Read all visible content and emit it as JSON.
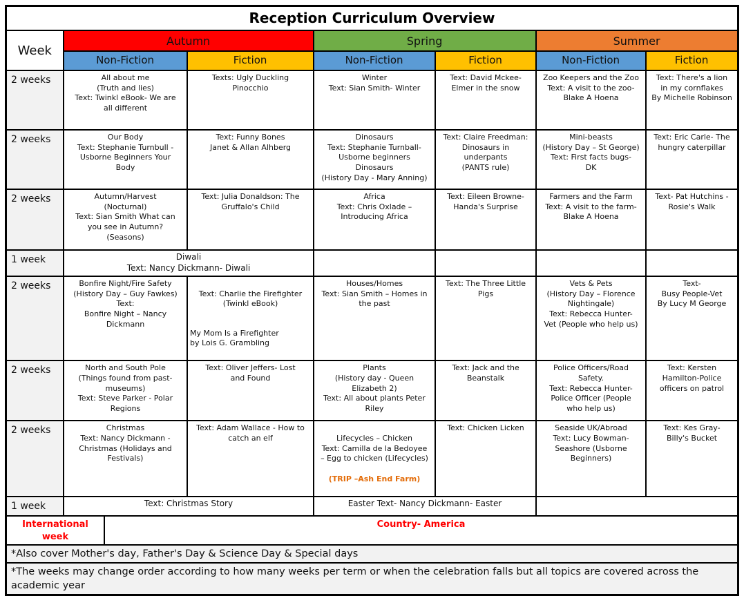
{
  "title": "Reception Curriculum Overview",
  "header": {
    "week_label": "Week",
    "seasons": {
      "autumn": "Autumn",
      "spring": "Spring",
      "summer": "Summer"
    },
    "subheaders": {
      "non_fiction": "Non-Fiction",
      "fiction": "Fiction"
    }
  },
  "colors": {
    "autumn": "#FF0000",
    "spring": "#70AD47",
    "summer": "#ED7D31",
    "non_fiction": "#5B9BD5",
    "fiction": "#FFC000",
    "trip_highlight": "#E36C09",
    "international_text": "#FF0000",
    "week_cell_bg": "#f2f2f2"
  },
  "rows": {
    "r1": {
      "week": "2 weeks",
      "autumn_nf": "All about me\n(Truth and lies)\nText: Twinkl eBook- We are\nall different",
      "autumn_f": "Texts: Ugly Duckling\nPinocchio",
      "spring_nf": "Winter\nText: Sian Smith- Winter",
      "spring_f": "Text: David Mckee-\nElmer in the snow",
      "summer_nf": "Zoo Keepers and the Zoo\nText: A visit to the zoo-\nBlake A Hoena",
      "summer_f": "Text: There's a lion\nin my cornflakes\nBy Michelle Robinson"
    },
    "r2": {
      "week": "2 weeks",
      "autumn_nf": "Our Body\nText: Stephanie Turnbull -\nUsborne Beginners Your\nBody",
      "autumn_f": "Text: Funny Bones\nJanet & Allan Alhberg",
      "spring_nf": "Dinosaurs\nText: Stephanie Turnball-\nUsborne beginners\nDinosaurs\n(History Day - Mary Anning)",
      "spring_f": "Text: Claire Freedman:\nDinosaurs in\nunderpants\n(PANTS rule)",
      "summer_nf": "Mini-beasts\n(History Day – St George)\nText: First facts bugs-\nDK",
      "summer_f": "Text: Eric Carle- The\nhungry caterpillar"
    },
    "r3": {
      "week": "2 weeks",
      "autumn_nf": "Autumn/Harvest\n(Nocturnal)\nText: Sian Smith What can\nyou see in Autumn?\n(Seasons)",
      "autumn_f": "Text: Julia Donaldson: The\nGruffalo's Child",
      "spring_nf": "Africa\nText: Chris Oxlade –\nIntroducing Africa",
      "spring_f": "Text: Eileen Browne-\nHanda's Surprise",
      "summer_nf": "Farmers and the Farm\nText: A visit to the farm-\nBlake A Hoena",
      "summer_f": "Text- Pat Hutchins -\nRosie's Walk"
    },
    "diwali": {
      "week": "1 week",
      "autumn": "Diwali\nText: Nancy Dickmann- Diwali"
    },
    "r5": {
      "week": "2 weeks",
      "autumn_nf": "Bonfire Night/Fire Safety\n(History Day – Guy Fawkes)\nText:\nBonfire Night – Nancy\nDickmann",
      "autumn_f_center": "Text: Charlie the Firefighter\n(Twinkl eBook)",
      "autumn_f_left": "My Mom Is a Firefighter\nby Lois G. Grambling",
      "spring_nf": "Houses/Homes\nText: Sian Smith – Homes in\nthe past",
      "spring_f": "Text: The Three Little\nPigs",
      "summer_nf": "Vets & Pets\n(History Day – Florence\nNightingale)\nText: Rebecca Hunter-\nVet (People who help us)",
      "summer_f": "Text-\nBusy People-Vet\nBy Lucy M George"
    },
    "r6": {
      "week": "2 weeks",
      "autumn_nf": "North and South Pole\n(Things found from past-\nmuseums)\nText: Steve Parker - Polar\nRegions",
      "autumn_f": "Text: Oliver Jeffers- Lost\nand Found",
      "spring_nf": "Plants\n(History day - Queen\nElizabeth 2)\nText: All about plants Peter\nRiley",
      "spring_f": "Text: Jack and the\nBeanstalk",
      "summer_nf": "Police Officers/Road\nSafety.\nText: Rebecca Hunter-\nPolice Officer (People\nwho help us)",
      "summer_f": "Text: Kersten\nHamilton-Police\nofficers on patrol"
    },
    "r7": {
      "week": "2 weeks",
      "autumn_nf": "Christmas\nText: Nancy Dickmann -\nChristmas (Holidays and\nFestivals)",
      "autumn_f": "Text: Adam Wallace - How to\ncatch an elf",
      "spring_nf": "Lifecycles – Chicken\nText: Camilla de la Bedoyee\n– Egg to chicken (Lifecycles)",
      "spring_nf_trip": "(TRIP –Ash End Farm)",
      "spring_f": "Text: Chicken Licken",
      "summer_nf": "Seaside UK/Abroad\nText: Lucy Bowman-\nSeashore (Usborne\nBeginners)",
      "summer_f": "Text: Kes Gray-\nBilly's Bucket"
    },
    "final_week": {
      "week": "1 week",
      "autumn": "Text: Christmas Story",
      "spring": "Easter  Text- Nancy Dickmann- Easter"
    },
    "international": {
      "label": "International week",
      "value": "Country- America"
    }
  },
  "footnotes": {
    "line1": "*Also cover Mother's day, Father's Day & Science Day & Special days",
    "line2": "*The weeks may change order according to how many weeks per term or when the celebration falls but all topics are covered across the academic year"
  }
}
